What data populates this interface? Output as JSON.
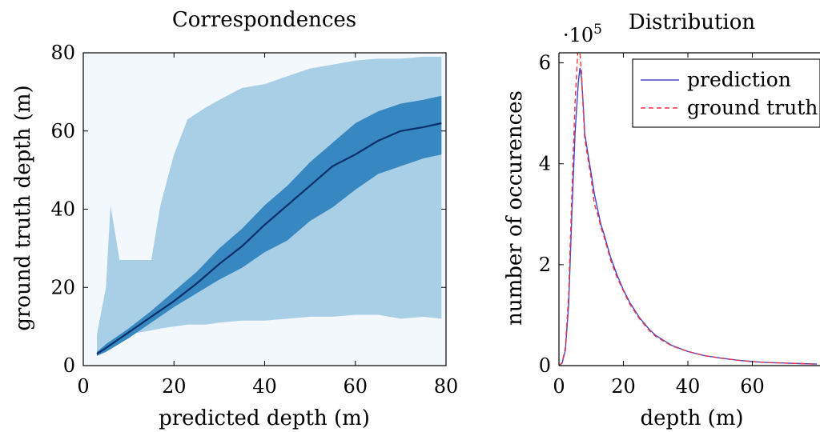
{
  "chart_data": [
    {
      "type": "heatmap",
      "title": "Correspondences",
      "xlabel": "predicted depth (m)",
      "ylabel": "ground truth depth (m)",
      "xlim": [
        0,
        80
      ],
      "ylim": [
        0,
        80
      ],
      "xticks": [
        "0",
        "20",
        "40",
        "60",
        "80"
      ],
      "yticks": [
        "0",
        "20",
        "40",
        "60",
        "80"
      ],
      "background_color": "#f3f8fd",
      "bands": [
        {
          "level": "outer",
          "color": "#a9cfe6",
          "x": [
            3,
            5,
            6,
            8,
            10,
            15,
            17,
            20,
            23,
            27,
            30,
            35,
            40,
            45,
            50,
            55,
            60,
            65,
            70,
            75,
            79
          ],
          "lower": [
            3,
            5,
            6,
            7,
            8,
            9,
            9.5,
            10,
            10.5,
            10.5,
            11,
            11.5,
            11.5,
            12,
            12.5,
            12.5,
            13,
            13,
            12,
            12.5,
            12
          ],
          "upper": [
            8,
            20,
            41,
            27,
            27,
            27,
            41,
            54,
            63,
            66,
            68,
            71,
            72,
            74,
            76,
            77,
            78,
            78.5,
            78.5,
            79,
            79
          ]
        },
        {
          "level": "inner",
          "color": "#3787c0",
          "x": [
            3,
            5,
            10,
            15,
            20,
            25,
            30,
            35,
            40,
            45,
            50,
            55,
            60,
            65,
            70,
            75,
            79
          ],
          "lower": [
            2.5,
            3.5,
            7,
            11,
            15,
            18.5,
            22,
            25,
            29,
            32,
            37,
            40.5,
            45,
            49,
            51,
            53,
            54
          ],
          "upper": [
            3.5,
            5.5,
            9.5,
            14,
            19,
            24,
            30,
            35,
            41,
            46,
            52,
            57,
            62,
            65,
            67,
            68,
            69
          ]
        }
      ],
      "median": {
        "color": "#08306b",
        "x": [
          3,
          5,
          10,
          15,
          20,
          25,
          30,
          35,
          40,
          45,
          50,
          55,
          60,
          65,
          70,
          75,
          79
        ],
        "y": [
          3,
          4.5,
          8.5,
          12.5,
          16.5,
          21,
          26,
          30.5,
          36,
          41,
          46,
          51,
          54,
          57.5,
          60,
          61,
          62
        ]
      }
    },
    {
      "type": "line",
      "title": "Distribution",
      "xlabel": "depth (m)",
      "ylabel": "number of occurences",
      "y_multiplier_label": "·10",
      "y_multiplier_exponent": "5",
      "xlim": [
        0,
        80
      ],
      "ylim": [
        0,
        6.2
      ],
      "xticks": [
        "0",
        "20",
        "40",
        "60"
      ],
      "yticks": [
        "0",
        "2",
        "4",
        "6"
      ],
      "legend_position": "top-right",
      "x": [
        0,
        1,
        2,
        3,
        4,
        5,
        6,
        6.5,
        7,
        7.5,
        8,
        9,
        10,
        11,
        12,
        13,
        14,
        16,
        18,
        20,
        22,
        25,
        28,
        30,
        35,
        40,
        45,
        50,
        55,
        60,
        65,
        70,
        75,
        80
      ],
      "series": [
        {
          "name": "prediction",
          "color": "#4444cc",
          "dash": "solid",
          "y": [
            0,
            0.05,
            0.3,
            1.2,
            3.0,
            4.6,
            5.6,
            5.9,
            5.7,
            5.2,
            4.6,
            4.2,
            3.8,
            3.4,
            3.1,
            2.8,
            2.6,
            2.15,
            1.8,
            1.5,
            1.25,
            0.95,
            0.72,
            0.6,
            0.4,
            0.28,
            0.2,
            0.15,
            0.11,
            0.08,
            0.06,
            0.05,
            0.04,
            0.03
          ]
        },
        {
          "name": "ground truth",
          "color": "#ee3344",
          "dash": "dashed",
          "y": [
            0,
            0.06,
            0.35,
            1.4,
            3.4,
            5.2,
            6.4,
            6.2,
            5.8,
            5.1,
            4.5,
            4.1,
            3.7,
            3.2,
            3.0,
            2.75,
            2.55,
            2.1,
            1.75,
            1.48,
            1.22,
            0.93,
            0.7,
            0.58,
            0.39,
            0.28,
            0.2,
            0.15,
            0.11,
            0.08,
            0.06,
            0.05,
            0.04,
            0.03
          ]
        }
      ]
    }
  ]
}
